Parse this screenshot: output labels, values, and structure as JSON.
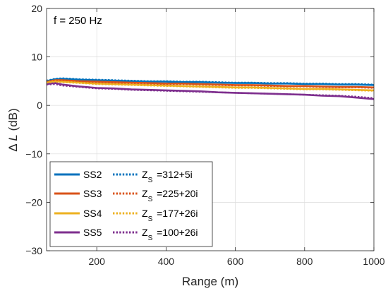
{
  "chart_data": {
    "type": "line",
    "annotation": "f = 250 Hz",
    "xlabel": "Range (m)",
    "ylabel_prefix": "Δ",
    "ylabel_var": "L",
    "ylabel_suffix": " (dB)",
    "xlim": [
      55,
      1000
    ],
    "ylim": [
      -30,
      20
    ],
    "xticks": [
      200,
      400,
      600,
      800,
      1000
    ],
    "yticks": [
      -30,
      -20,
      -10,
      0,
      10,
      20
    ],
    "xtick_labels": [
      "200",
      "400",
      "600",
      "800",
      "1000"
    ],
    "ytick_labels": [
      "−30",
      "−20",
      "−10",
      "0",
      "10",
      "20"
    ],
    "grid": true,
    "legend_position": "bottom-left",
    "x": [
      55,
      80,
      100,
      150,
      200,
      250,
      300,
      350,
      400,
      450,
      500,
      550,
      600,
      650,
      700,
      750,
      800,
      850,
      900,
      950,
      1000
    ],
    "series": [
      {
        "name": "SS2",
        "style": "solid",
        "color": "#0072BD",
        "values": [
          5.0,
          5.4,
          5.5,
          5.3,
          5.2,
          5.1,
          5.0,
          4.9,
          4.9,
          4.8,
          4.8,
          4.7,
          4.6,
          4.6,
          4.5,
          4.5,
          4.4,
          4.4,
          4.3,
          4.3,
          4.2
        ]
      },
      {
        "name": "SS3",
        "style": "solid",
        "color": "#D95319",
        "values": [
          4.9,
          5.2,
          5.2,
          5.0,
          4.9,
          4.8,
          4.7,
          4.6,
          4.5,
          4.5,
          4.4,
          4.3,
          4.2,
          4.2,
          4.1,
          4.0,
          4.0,
          3.9,
          3.8,
          3.8,
          3.7
        ]
      },
      {
        "name": "SS4",
        "style": "solid",
        "color": "#EDB120",
        "values": [
          4.8,
          5.0,
          4.9,
          4.7,
          4.5,
          4.4,
          4.3,
          4.2,
          4.1,
          4.0,
          3.9,
          3.8,
          3.7,
          3.7,
          3.6,
          3.5,
          3.4,
          3.4,
          3.3,
          3.2,
          3.1
        ]
      },
      {
        "name": "SS5",
        "style": "solid",
        "color": "#7E2F8E",
        "values": [
          4.4,
          4.6,
          4.3,
          3.9,
          3.6,
          3.5,
          3.3,
          3.2,
          3.1,
          3.0,
          2.9,
          2.7,
          2.6,
          2.5,
          2.4,
          2.3,
          2.2,
          2.0,
          1.9,
          1.6,
          1.3
        ]
      },
      {
        "name": "=312+5i",
        "style": "dotted",
        "color": "#0072BD",
        "values": [
          5.1,
          5.5,
          5.6,
          5.4,
          5.3,
          5.2,
          5.1,
          5.0,
          5.0,
          4.9,
          4.9,
          4.8,
          4.7,
          4.7,
          4.6,
          4.6,
          4.5,
          4.5,
          4.4,
          4.4,
          4.3
        ]
      },
      {
        "name": "=225+20i",
        "style": "dotted",
        "color": "#D95319",
        "values": [
          4.9,
          5.2,
          5.2,
          5.0,
          4.8,
          4.7,
          4.6,
          4.5,
          4.4,
          4.4,
          4.3,
          4.2,
          4.1,
          4.1,
          4.0,
          3.9,
          3.9,
          3.8,
          3.7,
          3.7,
          3.6
        ]
      },
      {
        "name": "=177+26i",
        "style": "dotted",
        "color": "#EDB120",
        "values": [
          4.7,
          4.9,
          4.8,
          4.6,
          4.4,
          4.3,
          4.2,
          4.1,
          4.0,
          3.9,
          3.8,
          3.7,
          3.6,
          3.6,
          3.5,
          3.4,
          3.3,
          3.3,
          3.2,
          3.1,
          3.0
        ]
      },
      {
        "name": "=100+26i",
        "style": "dotted",
        "color": "#7E2F8E",
        "values": [
          4.3,
          4.4,
          4.1,
          3.8,
          3.5,
          3.4,
          3.2,
          3.1,
          3.0,
          2.9,
          2.8,
          2.7,
          2.6,
          2.5,
          2.4,
          2.3,
          2.2,
          2.1,
          2.0,
          1.8,
          1.5
        ]
      }
    ],
    "legend": {
      "solid_labels": [
        "SS2",
        "SS3",
        "SS4",
        "SS5"
      ],
      "dotted_prefix": "Z",
      "dotted_subscript": "S",
      "dotted_labels": [
        "=312+5i",
        "=225+20i",
        "=177+26i",
        "=100+26i"
      ]
    }
  }
}
